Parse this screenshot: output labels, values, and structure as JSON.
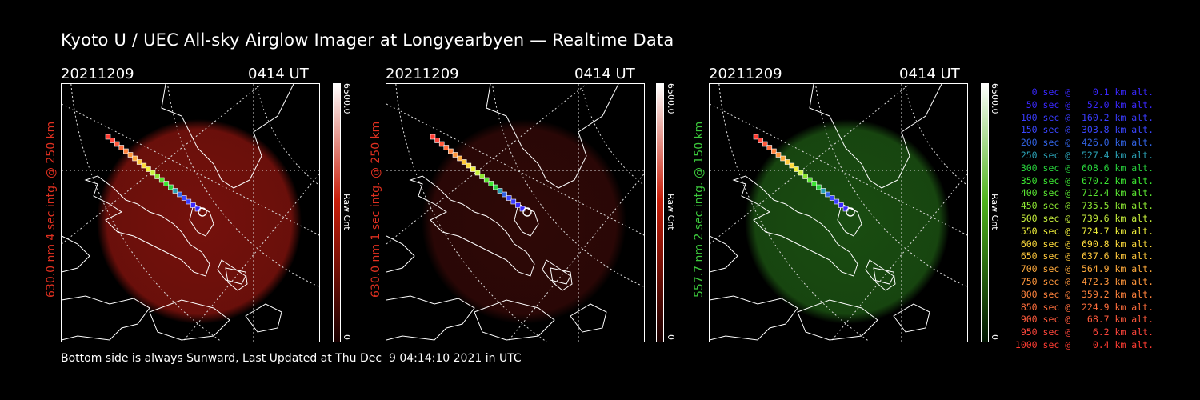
{
  "title": "Kyoto U / UEC All-sky Airglow Imager at Longyearbyen — Realtime Data",
  "panels": [
    {
      "date": "20211209",
      "time": "0414 UT",
      "ylabel": "630.0 nm 4 sec intg. @ 250 km",
      "ylabel_color": "#e03020",
      "glow_color": "#8a140e",
      "glow_opacity": 0.85,
      "cbar_max": "6500.0",
      "cbar_unit": "Raw Cnt",
      "cbar_min": "0",
      "cbar_color": "#c81e0a"
    },
    {
      "date": "20211209",
      "time": "0414 UT",
      "ylabel": "630.0 nm 1 sec intg. @ 250 km",
      "ylabel_color": "#e03020",
      "glow_color": "#3a0a08",
      "glow_opacity": 0.8,
      "cbar_max": "6500.0",
      "cbar_unit": "Raw Cnt",
      "cbar_min": "0",
      "cbar_color": "#c81e0a"
    },
    {
      "date": "20211209",
      "time": "0414 UT",
      "ylabel": "557.7 nm 2 sec intg. @ 150 km",
      "ylabel_color": "#3cc83c",
      "glow_color": "#1e5a14",
      "glow_opacity": 0.85,
      "cbar_max": "6500.0",
      "cbar_unit": "Raw Cnt",
      "cbar_min": "0",
      "cbar_color": "#50b41e"
    }
  ],
  "legend": [
    {
      "text": "   0 sec @    0.1 km alt.",
      "color": "#3a28ff"
    },
    {
      "text": "  50 sec @   52.0 km alt.",
      "color": "#3a28ff"
    },
    {
      "text": " 100 sec @  160.2 km alt.",
      "color": "#3a3cff"
    },
    {
      "text": " 150 sec @  303.8 km alt.",
      "color": "#3a46ff"
    },
    {
      "text": " 200 sec @  426.0 km alt.",
      "color": "#3264e6"
    },
    {
      "text": " 250 sec @  527.4 km alt.",
      "color": "#2aa0b4"
    },
    {
      "text": " 300 sec @  608.6 km alt.",
      "color": "#28d23c"
    },
    {
      "text": " 350 sec @  670.2 km alt.",
      "color": "#3ce632"
    },
    {
      "text": " 400 sec @  712.4 km alt.",
      "color": "#5ae632"
    },
    {
      "text": " 450 sec @  735.5 km alt.",
      "color": "#8ce632"
    },
    {
      "text": " 500 sec @  739.6 km alt.",
      "color": "#c8f03c"
    },
    {
      "text": " 550 sec @  724.7 km alt.",
      "color": "#f0f03c"
    },
    {
      "text": " 600 sec @  690.8 km alt.",
      "color": "#ffdc3c"
    },
    {
      "text": " 650 sec @  637.6 km alt.",
      "color": "#ffc83c"
    },
    {
      "text": " 700 sec @  564.9 km alt.",
      "color": "#ffaa3c"
    },
    {
      "text": " 750 sec @  472.3 km alt.",
      "color": "#ff963c"
    },
    {
      "text": " 800 sec @  359.2 km alt.",
      "color": "#ff823c"
    },
    {
      "text": " 850 sec @  224.9 km alt.",
      "color": "#ff6e3c"
    },
    {
      "text": " 900 sec @   68.7 km alt.",
      "color": "#ff5a3c"
    },
    {
      "text": " 950 sec @    6.2 km alt.",
      "color": "#ff463c"
    },
    {
      "text": "1000 sec @    0.4 km alt.",
      "color": "#ff3c32"
    }
  ],
  "footer": "Bottom side is always Sunward, Last Updated at Thu Dec  9 04:14:10 2021 in UTC"
}
